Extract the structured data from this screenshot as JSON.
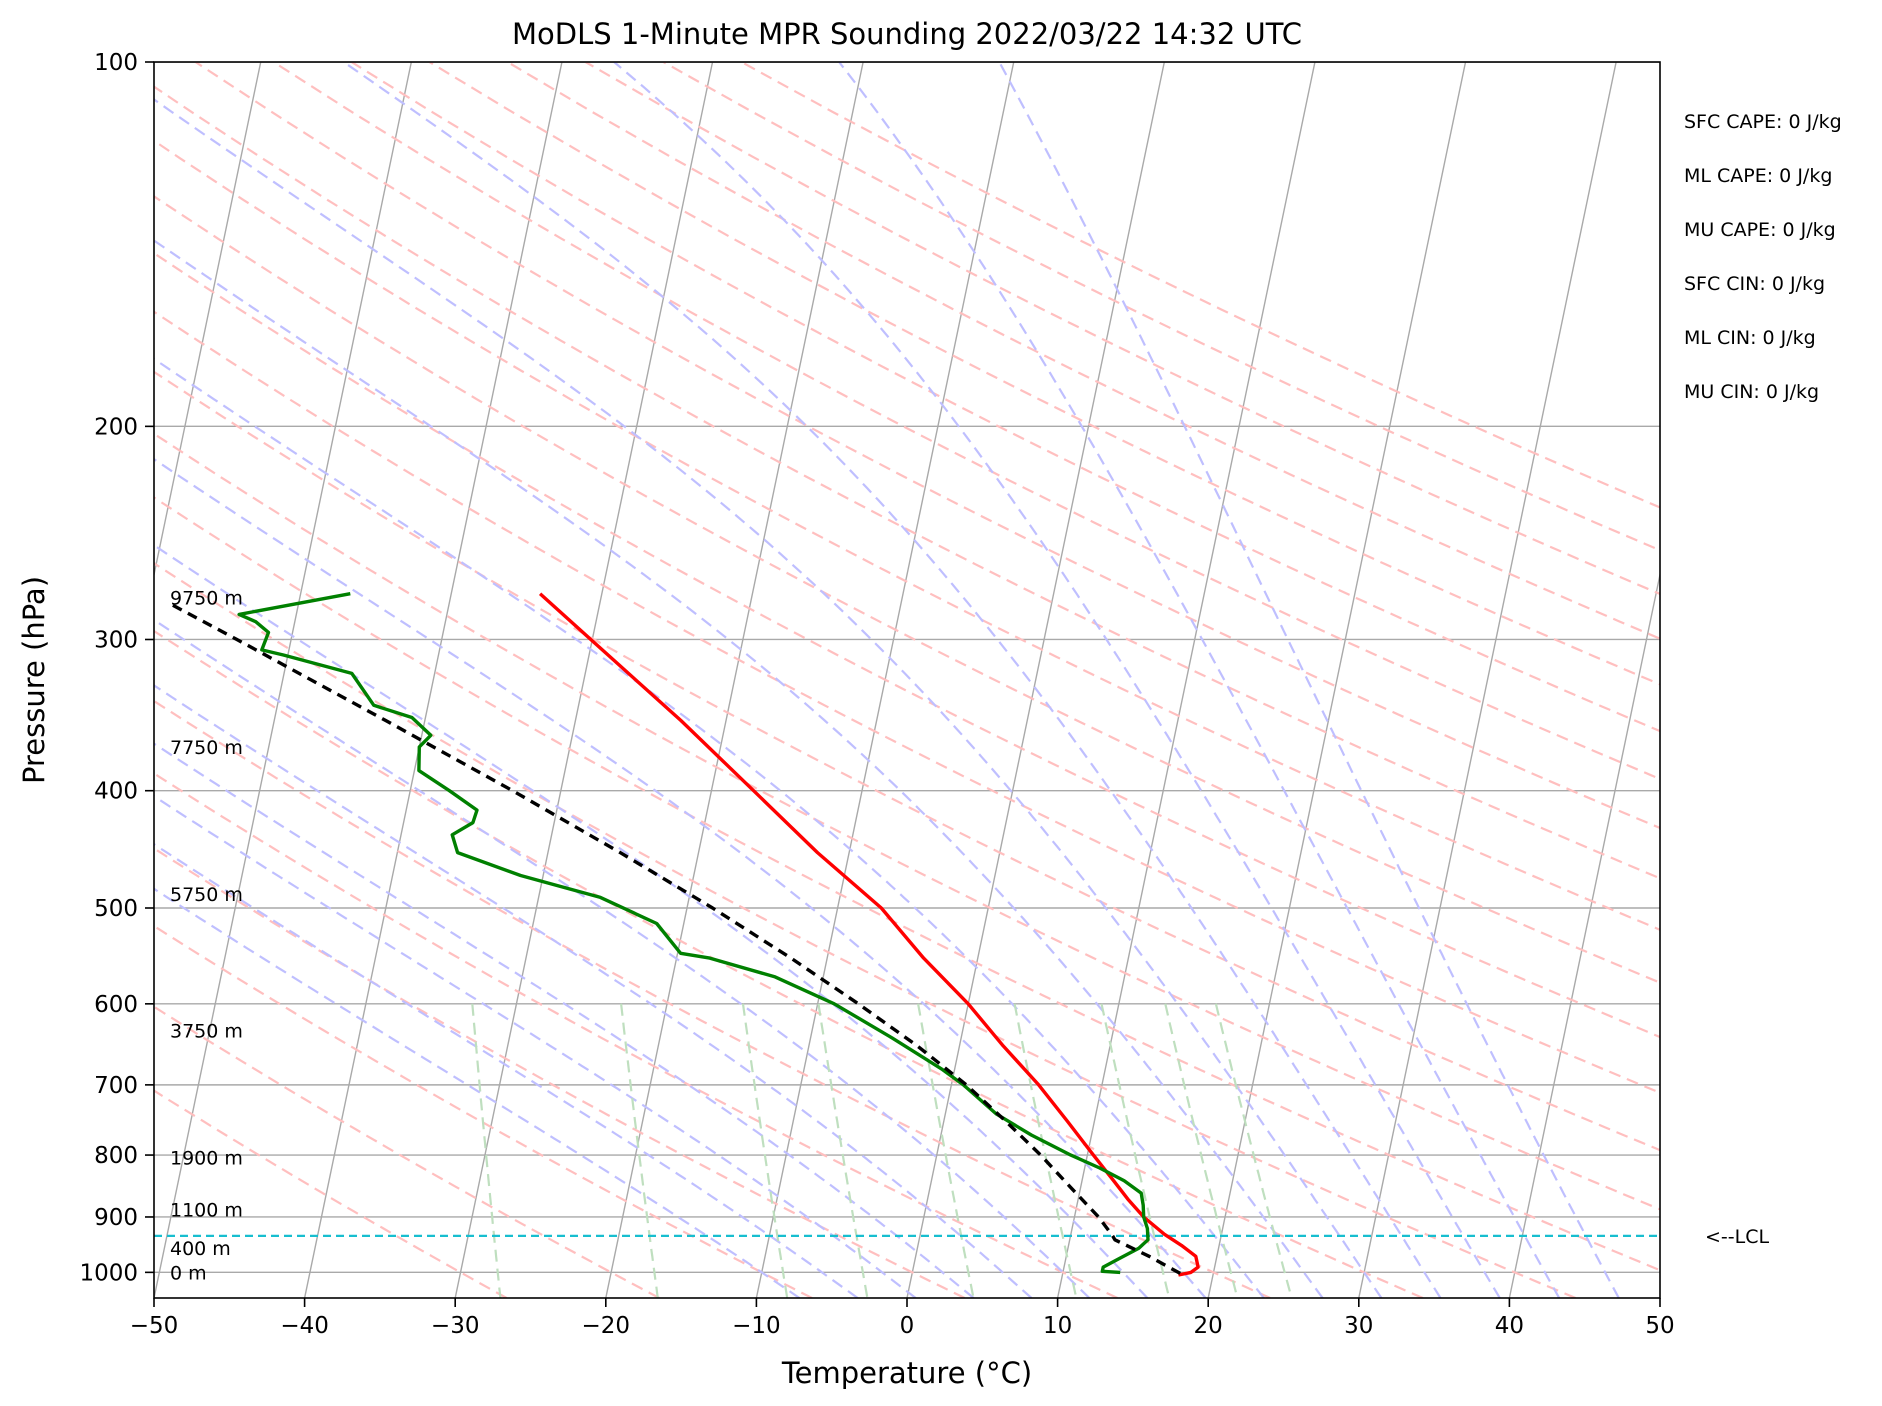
{
  "chart_data": {
    "type": "skewt",
    "title": "MoDLS 1-Minute MPR Sounding 2022/03/22 14:32 UTC",
    "xlabel": "Temperature (°C)",
    "ylabel": "Pressure (hPa)",
    "xlim": [
      -50,
      50
    ],
    "ylim": [
      1050,
      100
    ],
    "x_ticks": [
      -50,
      -40,
      -30,
      -20,
      -10,
      0,
      10,
      20,
      30,
      40,
      50
    ],
    "x_tick_labels": [
      "−50",
      "−40",
      "−30",
      "−20",
      "−10",
      "0",
      "10",
      "20",
      "30",
      "40",
      "50"
    ],
    "y_ticks": [
      1000,
      900,
      800,
      700,
      600,
      500,
      400,
      300,
      200,
      100
    ],
    "y_tick_labels": [
      "1000",
      "900",
      "800",
      "700",
      "600",
      "500",
      "400",
      "300",
      "200",
      "100"
    ],
    "grid": true,
    "colors": {
      "temperature": "#ff0000",
      "dewpoint": "#008000",
      "parcel": "#000000",
      "lcl": "#17becf",
      "isotherm": "#a9a9a9",
      "dry_adiabat": "#ffbfbf",
      "moist_adiabat": "#bfbfff",
      "mixing_ratio": "#bfdfbf"
    },
    "series": [
      {
        "key": "temperature",
        "points": [
          [
            1005,
            17.7
          ],
          [
            1000,
            18.5
          ],
          [
            990,
            18.9
          ],
          [
            970,
            18.6
          ],
          [
            950,
            17.5
          ],
          [
            930,
            16.2
          ],
          [
            900,
            14.6
          ],
          [
            870,
            13.3
          ],
          [
            840,
            12.1
          ],
          [
            800,
            10.4
          ],
          [
            750,
            8.2
          ],
          [
            700,
            5.8
          ],
          [
            650,
            2.9
          ],
          [
            600,
            0.0
          ],
          [
            550,
            -3.6
          ],
          [
            500,
            -7.1
          ],
          [
            450,
            -12.1
          ],
          [
            400,
            -17.2
          ],
          [
            350,
            -23.0
          ],
          [
            300,
            -30.1
          ],
          [
            275,
            -34.1
          ]
        ]
      },
      {
        "key": "dewpoint",
        "points": [
          [
            1000,
            13.8
          ],
          [
            998,
            12.6
          ],
          [
            990,
            12.6
          ],
          [
            975,
            13.5
          ],
          [
            955,
            14.7
          ],
          [
            940,
            15.2
          ],
          [
            920,
            15.0
          ],
          [
            900,
            14.6
          ],
          [
            880,
            14.4
          ],
          [
            860,
            14.1
          ],
          [
            840,
            12.8
          ],
          [
            820,
            11.0
          ],
          [
            800,
            8.9
          ],
          [
            770,
            6.0
          ],
          [
            740,
            3.4
          ],
          [
            700,
            0.8
          ],
          [
            680,
            -0.8
          ],
          [
            640,
            -4.6
          ],
          [
            600,
            -8.9
          ],
          [
            570,
            -13.2
          ],
          [
            550,
            -17.8
          ],
          [
            545,
            -19.8
          ],
          [
            515,
            -21.8
          ],
          [
            490,
            -25.9
          ],
          [
            470,
            -31.5
          ],
          [
            450,
            -36.0
          ],
          [
            435,
            -36.6
          ],
          [
            425,
            -35.4
          ],
          [
            415,
            -35.3
          ],
          [
            400,
            -37.4
          ],
          [
            385,
            -39.7
          ],
          [
            368,
            -40.0
          ],
          [
            360,
            -39.4
          ],
          [
            348,
            -40.9
          ],
          [
            340,
            -43.6
          ],
          [
            320,
            -45.5
          ],
          [
            309,
            -50.3
          ],
          [
            306,
            -51.8
          ],
          [
            296,
            -51.6
          ],
          [
            290,
            -52.6
          ],
          [
            286,
            -53.8
          ],
          [
            275,
            -46.7
          ]
        ]
      },
      {
        "key": "parcel",
        "points": [
          [
            1002,
            17.8
          ],
          [
            970,
            15.5
          ],
          [
            940,
            13.0
          ],
          [
            933,
            12.8
          ],
          [
            900,
            11.6
          ],
          [
            850,
            9.3
          ],
          [
            800,
            6.9
          ],
          [
            750,
            4.1
          ],
          [
            700,
            1.0
          ],
          [
            650,
            -2.8
          ],
          [
            600,
            -7.3
          ],
          [
            550,
            -12.4
          ],
          [
            500,
            -18.3
          ],
          [
            450,
            -25.2
          ],
          [
            400,
            -33.2
          ],
          [
            350,
            -42.6
          ],
          [
            300,
            -53.6
          ],
          [
            280,
            -58.6
          ]
        ]
      }
    ],
    "lcl_pressure": 933,
    "lcl_label": "<--LCL",
    "height_labels": [
      {
        "p": 1000,
        "label": "0 m"
      },
      {
        "p": 955,
        "label": "400 m"
      },
      {
        "p": 887,
        "label": "1100 m"
      },
      {
        "p": 804,
        "label": "1900 m"
      },
      {
        "p": 631,
        "label": "3750 m"
      },
      {
        "p": 487,
        "label": "5750 m"
      },
      {
        "p": 368,
        "label": "7750 m"
      },
      {
        "p": 277,
        "label": "9750 m"
      }
    ],
    "stats": [
      "SFC CAPE: 0 J/kg",
      "ML CAPE: 0 J/kg",
      "MU CAPE: 0 J/kg",
      "SFC CIN: 0 J/kg",
      "ML CIN: 0 J/kg",
      "MU CIN: 0 J/kg"
    ]
  }
}
